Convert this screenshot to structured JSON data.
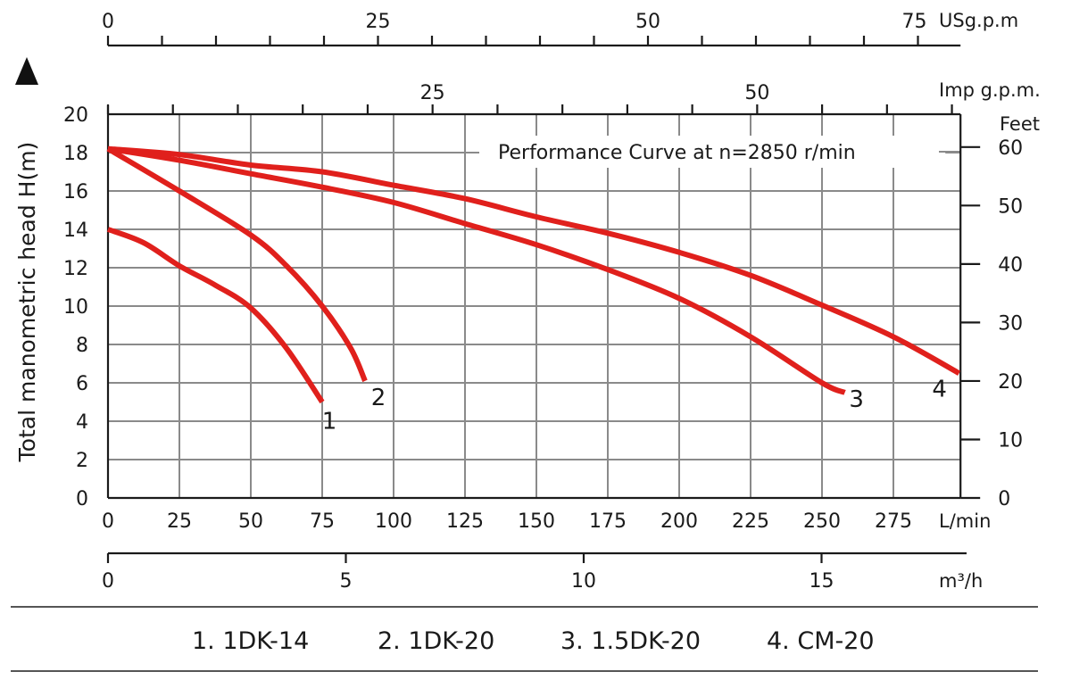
{
  "chart_data": {
    "type": "line",
    "title": "Performance Curve at n=2850 r/min",
    "xlabel": "L/min",
    "ylabel": "Total manometric head H(m)",
    "xlim": [
      0,
      298.5
    ],
    "ylim": [
      0,
      20
    ],
    "grid": true,
    "x_ticks": [
      0,
      25,
      50,
      75,
      100,
      125,
      150,
      175,
      200,
      225,
      250,
      275
    ],
    "y_ticks": [
      0,
      2,
      4,
      6,
      8,
      10,
      12,
      14,
      16,
      18,
      20
    ],
    "secondary_axes": {
      "usgpm": {
        "label": "USg.p.m",
        "ticks": [
          0,
          25,
          50,
          75
        ],
        "minor_step": 5,
        "max": 80
      },
      "impgpm": {
        "label": "Imp g.p.m.",
        "ticks": [
          25,
          50
        ],
        "minor_step": 5,
        "max": 65
      },
      "feet": {
        "label": "Feet",
        "ticks": [
          0,
          10,
          20,
          30,
          40,
          50,
          60
        ]
      },
      "m3h": {
        "label": "m³/h",
        "ticks": [
          0,
          5,
          10,
          15
        ],
        "max": 18
      }
    },
    "series": [
      {
        "name": "1",
        "model": "1DK-14",
        "color": "#e0201c",
        "x": [
          0,
          12.5,
          25,
          37.5,
          50,
          62.5,
          75
        ],
        "y": [
          14.0,
          13.3,
          12.1,
          11.1,
          9.9,
          7.8,
          5.0
        ]
      },
      {
        "name": "2",
        "model": "1DK-20",
        "color": "#e0201c",
        "x": [
          0,
          25,
          50,
          62.5,
          75,
          85,
          90
        ],
        "y": [
          18.2,
          16.0,
          13.7,
          12.1,
          10.0,
          7.8,
          6.1
        ]
      },
      {
        "name": "3",
        "model": "1.5DK-20",
        "color": "#e0201c",
        "x": [
          0,
          25,
          50,
          75,
          100,
          125,
          150,
          175,
          200,
          225,
          250,
          258
        ],
        "y": [
          18.2,
          17.6,
          16.9,
          16.2,
          15.4,
          14.3,
          13.2,
          11.9,
          10.4,
          8.4,
          6.0,
          5.5
        ]
      },
      {
        "name": "4",
        "model": "CM-20",
        "color": "#e0201c",
        "x": [
          0,
          25,
          50,
          75,
          100,
          125,
          150,
          175,
          200,
          225,
          250,
          275,
          298
        ],
        "y": [
          18.2,
          17.9,
          17.35,
          17.0,
          16.3,
          15.6,
          14.65,
          13.8,
          12.8,
          11.6,
          10.05,
          8.4,
          6.5
        ]
      }
    ],
    "legend": [
      "1. 1DK-14",
      "2. 1DK-20",
      "3. 1.5DK-20",
      "4. CM-20"
    ],
    "legend_placement": "bottom"
  }
}
